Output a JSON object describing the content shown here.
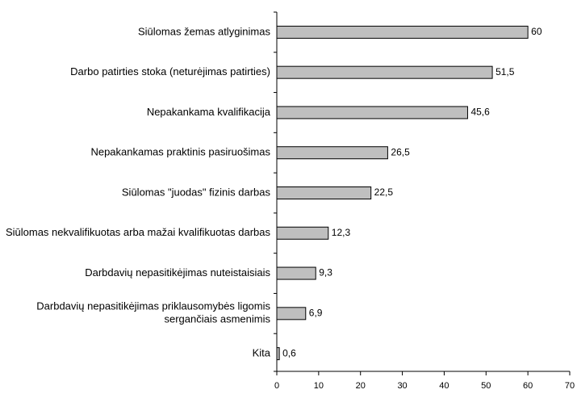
{
  "chart_data": {
    "type": "bar",
    "orientation": "horizontal",
    "categories": [
      "Siūlomas žemas atlyginimas",
      "Darbo patirties stoka (neturėjimas patirties)",
      "Nepakankama kvalifikacija",
      "Nepakankamas praktinis pasiruošimas",
      "Siūlomas \"juodas\" fizinis darbas",
      "Siūlomas nekvalifikuotas arba mažai kvalifikuotas darbas",
      "Darbdavių nepasitikėjimas nuteistaisiais",
      "Darbdavių nepasitikėjimas priklausomybės ligomis sergančiais asmenimis",
      "Kita"
    ],
    "values": [
      60,
      51.5,
      45.6,
      26.5,
      22.5,
      12.3,
      9.3,
      6.9,
      0.6
    ],
    "value_labels": [
      "60",
      "51,5",
      "45,6",
      "26,5",
      "22,5",
      "12,3",
      "9,3",
      "6,9",
      "0,6"
    ],
    "color": "#bfbfbf",
    "xlim": [
      0,
      70
    ],
    "xticks": [
      0,
      10,
      20,
      30,
      40,
      50,
      60,
      70
    ]
  }
}
